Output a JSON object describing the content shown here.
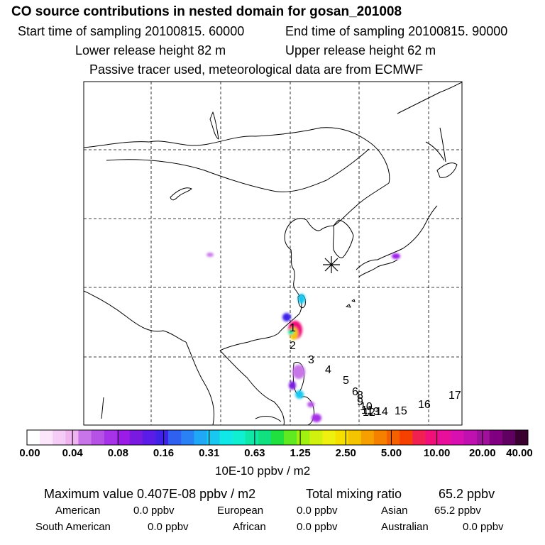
{
  "header": {
    "title": "CO  source contributions in nested domain for gosan_201008",
    "start_time": "Start time of sampling 20100815. 60000",
    "end_time": "End time of sampling 20100815. 90000",
    "lower_release": "Lower release height   82 m",
    "upper_release": "Upper release height   62 m",
    "tracer_note": "Passive tracer used, meteorological data are from ECMWF"
  },
  "map": {
    "receptor_marker": "*",
    "trajectory_labels": [
      "1",
      "2",
      "3",
      "4",
      "5",
      "6",
      "8",
      "9",
      "10",
      "11",
      "12",
      "13",
      "14",
      "15",
      "16",
      "17"
    ]
  },
  "colorbar": {
    "ticks": [
      "0.00",
      "0.04",
      "0.08",
      "0.16",
      "0.31",
      "0.63",
      "1.25",
      "2.50",
      "5.00",
      "10.00",
      "20.00",
      "40.00"
    ],
    "unit": "10E-10 ppbv / m2",
    "colors": [
      "#ffffff",
      "#fbe6fb",
      "#f5ccf5",
      "#efb3ef",
      "#c775e8",
      "#b653e6",
      "#a633e8",
      "#9a1ce6",
      "#7a1ae0",
      "#5a1ce6",
      "#3e22e8",
      "#3060f0",
      "#2a80f5",
      "#1ea8f5",
      "#18c8f0",
      "#10e8e8",
      "#10f0d0",
      "#10e8a8",
      "#10e080",
      "#20e040",
      "#60e820",
      "#a0f010",
      "#d0f010",
      "#f0f010",
      "#f5e000",
      "#f5c400",
      "#f5a000",
      "#f58000",
      "#f56000",
      "#f54000",
      "#f02050",
      "#f0107a",
      "#e8109a",
      "#d810b0",
      "#c010b0",
      "#a0109a",
      "#800080",
      "#600060",
      "#3a0030"
    ]
  },
  "summary": {
    "max_label": "Maximum value  0.407E-08 ppbv / m2",
    "total_label": "Total mixing ratio",
    "total_value": "65.2 ppbv",
    "regions": [
      {
        "name": "American",
        "value": "0.0 ppbv"
      },
      {
        "name": "European",
        "value": "0.0 ppbv"
      },
      {
        "name": "Asian",
        "value": "65.2 ppbv"
      },
      {
        "name": "South American",
        "value": "0.0 ppbv"
      },
      {
        "name": "African",
        "value": "0.0 ppbv"
      },
      {
        "name": "Australian",
        "value": "0.0 ppbv"
      }
    ]
  }
}
